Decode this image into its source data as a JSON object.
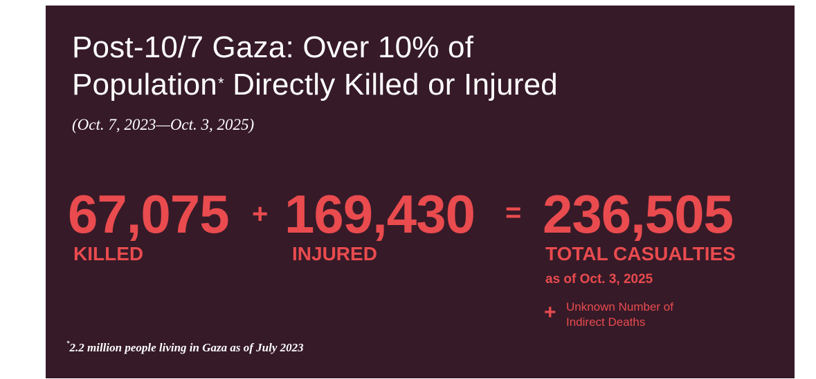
{
  "title": {
    "line1": "Post-10/7 Gaza: Over 10% of",
    "line2": "Population",
    "line2_marker": "*",
    "line2_rest": " Directly Killed or Injured"
  },
  "subtitle": "(Oct. 7, 2023—Oct. 3, 2025)",
  "equation": {
    "killed_value": "67,075",
    "killed_label": "KILLED",
    "plus": "+",
    "injured_value": "169,430",
    "injured_label": "INJURED",
    "equals": "=",
    "total_value": "236,505",
    "total_label": "TOTAL CASUALTIES",
    "as_of": "as of Oct. 3, 2025"
  },
  "indirect": {
    "plus": "+",
    "line1": "Unknown Number of",
    "line2": "Indirect Deaths"
  },
  "footnote": {
    "marker": "*",
    "text": "2.2 million people living in Gaza as of July 2023"
  },
  "colors": {
    "background": "#361a28",
    "accent": "#e94b4e",
    "text": "#ffffff"
  }
}
